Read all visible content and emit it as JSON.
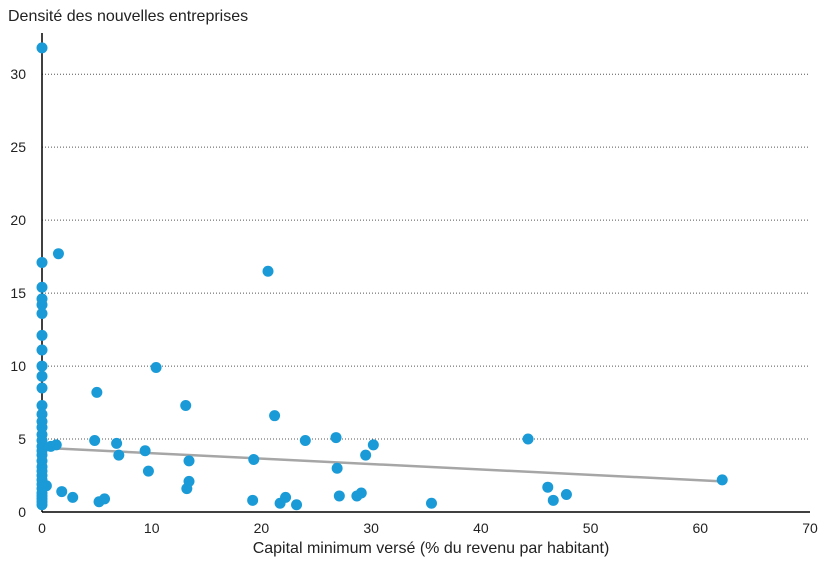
{
  "chart_data": {
    "type": "scatter",
    "title": "",
    "xlabel": "Capital minimum versé (% du revenu par habitant)",
    "ylabel": "Densité des nouvelles entreprises",
    "xlim": [
      0,
      70
    ],
    "ylim": [
      0,
      32
    ],
    "xticks": [
      0,
      10,
      20,
      30,
      40,
      50,
      60,
      70
    ],
    "yticks": [
      0,
      5,
      10,
      15,
      20,
      25,
      30
    ],
    "grid": "horizontal dotted",
    "colors": {
      "points": "#1a9bd7",
      "trend": "#a6a6a6",
      "axis": "#000000",
      "grid": "#555555"
    },
    "trendline": {
      "x": [
        0,
        62
      ],
      "y": [
        4.4,
        2.1
      ]
    },
    "points": [
      {
        "x": 0,
        "y": 31.8
      },
      {
        "x": 0,
        "y": 17.1
      },
      {
        "x": 0,
        "y": 15.4
      },
      {
        "x": 0,
        "y": 14.6
      },
      {
        "x": 0,
        "y": 14.2
      },
      {
        "x": 0,
        "y": 13.6
      },
      {
        "x": 0,
        "y": 12.1
      },
      {
        "x": 0,
        "y": 11.1
      },
      {
        "x": 0,
        "y": 10
      },
      {
        "x": 0,
        "y": 9.3
      },
      {
        "x": 0,
        "y": 8.5
      },
      {
        "x": 0,
        "y": 7.3
      },
      {
        "x": 0,
        "y": 6.7
      },
      {
        "x": 0,
        "y": 6.2
      },
      {
        "x": 0,
        "y": 5.8
      },
      {
        "x": 0,
        "y": 5.3
      },
      {
        "x": 0,
        "y": 4.9
      },
      {
        "x": 0,
        "y": 4.5
      },
      {
        "x": 0,
        "y": 4.2
      },
      {
        "x": 0,
        "y": 3.9
      },
      {
        "x": 0,
        "y": 3.5
      },
      {
        "x": 0,
        "y": 3.1
      },
      {
        "x": 0,
        "y": 2.8
      },
      {
        "x": 0,
        "y": 2.5
      },
      {
        "x": 0,
        "y": 2.2
      },
      {
        "x": 0,
        "y": 1.9
      },
      {
        "x": 0,
        "y": 1.6
      },
      {
        "x": 0,
        "y": 1.3
      },
      {
        "x": 0,
        "y": 1.1
      },
      {
        "x": 0,
        "y": 0.9
      },
      {
        "x": 0,
        "y": 0.7
      },
      {
        "x": 0,
        "y": 0.5
      },
      {
        "x": 0.4,
        "y": 1.8
      },
      {
        "x": 0.8,
        "y": 4.5
      },
      {
        "x": 1.3,
        "y": 4.6
      },
      {
        "x": 1.5,
        "y": 17.7
      },
      {
        "x": 1.8,
        "y": 1.4
      },
      {
        "x": 2.8,
        "y": 1
      },
      {
        "x": 4.8,
        "y": 4.9
      },
      {
        "x": 5.0,
        "y": 8.2
      },
      {
        "x": 5.2,
        "y": 0.7
      },
      {
        "x": 5.7,
        "y": 0.9
      },
      {
        "x": 6.8,
        "y": 4.7
      },
      {
        "x": 7.0,
        "y": 3.9
      },
      {
        "x": 9.4,
        "y": 4.2
      },
      {
        "x": 9.7,
        "y": 2.8
      },
      {
        "x": 10.4,
        "y": 9.9
      },
      {
        "x": 13.1,
        "y": 7.3
      },
      {
        "x": 13.2,
        "y": 1.6
      },
      {
        "x": 13.4,
        "y": 2.1
      },
      {
        "x": 13.4,
        "y": 3.5
      },
      {
        "x": 19.2,
        "y": 0.8
      },
      {
        "x": 19.3,
        "y": 3.6
      },
      {
        "x": 20.6,
        "y": 16.5
      },
      {
        "x": 21.2,
        "y": 6.6
      },
      {
        "x": 21.7,
        "y": 0.6
      },
      {
        "x": 22.2,
        "y": 1
      },
      {
        "x": 23.2,
        "y": 0.5
      },
      {
        "x": 24.0,
        "y": 4.9
      },
      {
        "x": 26.8,
        "y": 5.1
      },
      {
        "x": 26.9,
        "y": 3
      },
      {
        "x": 27.1,
        "y": 1.1
      },
      {
        "x": 28.7,
        "y": 1.1
      },
      {
        "x": 29.1,
        "y": 1.3
      },
      {
        "x": 29.5,
        "y": 3.9
      },
      {
        "x": 30.2,
        "y": 4.6
      },
      {
        "x": 35.5,
        "y": 0.6
      },
      {
        "x": 44.3,
        "y": 5
      },
      {
        "x": 46.1,
        "y": 1.7
      },
      {
        "x": 46.6,
        "y": 0.8
      },
      {
        "x": 47.8,
        "y": 1.2
      },
      {
        "x": 62.0,
        "y": 2.2
      }
    ]
  }
}
